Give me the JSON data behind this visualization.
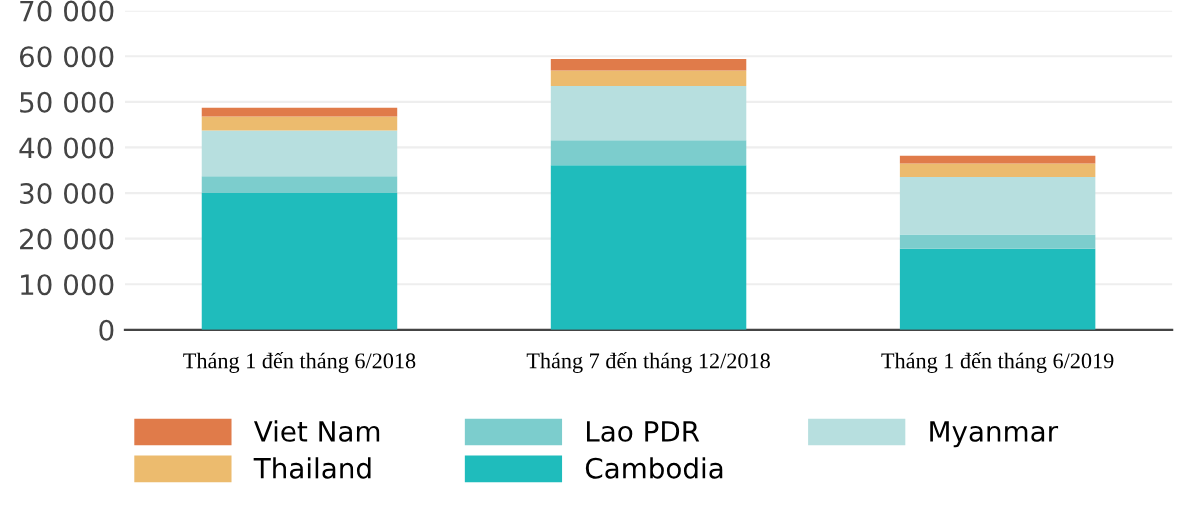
{
  "chart_data": {
    "type": "bar",
    "stacked": true,
    "categories": [
      "Tháng 1 đến tháng 6/2018",
      "Tháng 7 đến tháng 12/2018",
      "Tháng 1 đến tháng 6/2019"
    ],
    "series": [
      {
        "name": "Cambodia",
        "color": "#1fbcbc",
        "values": [
          30000,
          36100,
          17800
        ]
      },
      {
        "name": "Lao PDR",
        "color": "#7ccdcd",
        "values": [
          3700,
          5500,
          3100
        ]
      },
      {
        "name": "Myanmar",
        "color": "#b7dfdf",
        "values": [
          10000,
          11900,
          12600
        ]
      },
      {
        "name": "Thailand",
        "color": "#ecbb6e",
        "values": [
          3100,
          3400,
          3000
        ]
      },
      {
        "name": "Viet Nam",
        "color": "#e07b4a",
        "values": [
          1900,
          2500,
          1700
        ]
      }
    ],
    "ylim": [
      0,
      70000
    ],
    "yticks": [
      {
        "value": 0,
        "label": "0"
      },
      {
        "value": 10000,
        "label": "10 000"
      },
      {
        "value": 20000,
        "label": "20 000"
      },
      {
        "value": 30000,
        "label": "30 000"
      },
      {
        "value": 40000,
        "label": "40 000"
      },
      {
        "value": 50000,
        "label": "50 000"
      },
      {
        "value": 60000,
        "label": "60 000"
      },
      {
        "value": 70000,
        "label": "70 000"
      }
    ],
    "grid": "y",
    "legend": "bottom"
  }
}
